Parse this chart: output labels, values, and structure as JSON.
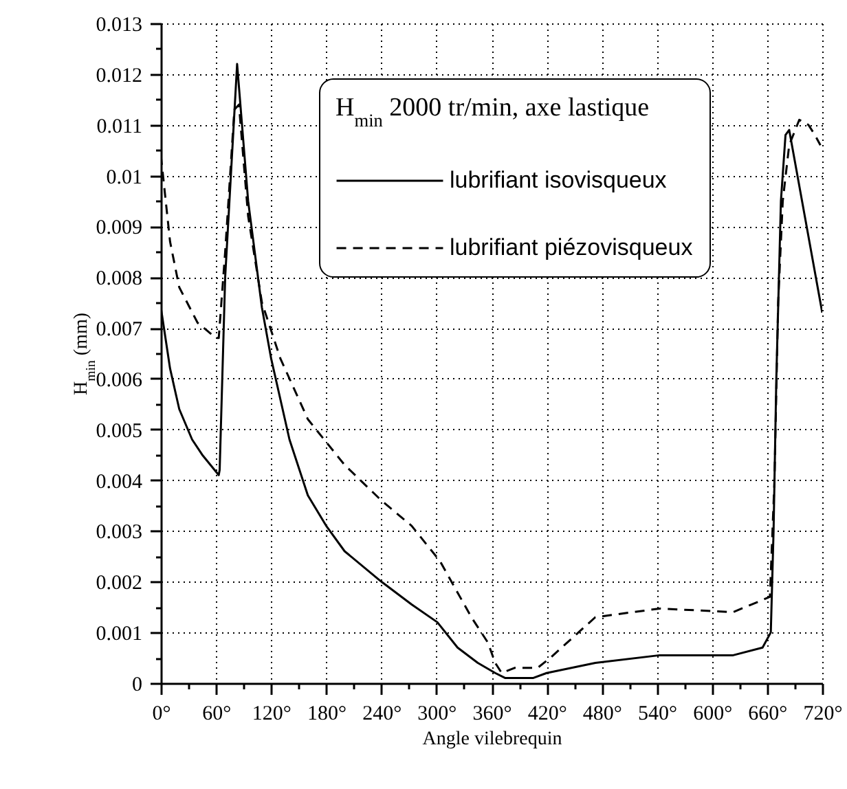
{
  "chart_data": {
    "type": "line",
    "xlabel": "Angle vilebrequin",
    "ylabel": "H$_{min}$ (mm)",
    "legend_title": "H$_{min}$  2000 tr/min, axe  lastique",
    "legend": "top",
    "grid": true,
    "xlim": [
      0,
      720
    ],
    "ylim": [
      0,
      0.013
    ],
    "xticks": [
      {
        "value": 0,
        "label": "0°"
      },
      {
        "value": 30,
        "label": null
      },
      {
        "value": 60,
        "label": "60°"
      },
      {
        "value": 90,
        "label": null
      },
      {
        "value": 120,
        "label": "120°"
      },
      {
        "value": 150,
        "label": null
      },
      {
        "value": 180,
        "label": "180°"
      },
      {
        "value": 210,
        "label": null
      },
      {
        "value": 240,
        "label": "240°"
      },
      {
        "value": 270,
        "label": null
      },
      {
        "value": 300,
        "label": "300°"
      },
      {
        "value": 330,
        "label": null
      },
      {
        "value": 360,
        "label": "360°"
      },
      {
        "value": 390,
        "label": null
      },
      {
        "value": 420,
        "label": "420°"
      },
      {
        "value": 450,
        "label": null
      },
      {
        "value": 480,
        "label": "480°"
      },
      {
        "value": 510,
        "label": null
      },
      {
        "value": 540,
        "label": "540°"
      },
      {
        "value": 570,
        "label": null
      },
      {
        "value": 600,
        "label": "600°"
      },
      {
        "value": 630,
        "label": null
      },
      {
        "value": 660,
        "label": "660°"
      },
      {
        "value": 690,
        "label": null
      },
      {
        "value": 720,
        "label": "720°"
      }
    ],
    "yticks": [
      0,
      {
        "value": 0.0005,
        "label": null
      },
      0.001,
      {
        "value": 0.0015,
        "label": null
      },
      0.002,
      {
        "value": 0.0025,
        "label": null
      },
      0.003,
      {
        "value": 0.0035,
        "label": null
      },
      0.004,
      {
        "value": 0.0045,
        "label": null
      },
      0.005,
      {
        "value": 0.0055,
        "label": null
      },
      0.006,
      {
        "value": 0.0065,
        "label": null
      },
      0.007,
      {
        "value": 0.0075,
        "label": null
      },
      0.008,
      {
        "value": 0.0085,
        "label": null
      },
      0.009,
      {
        "value": 0.0095,
        "label": null
      },
      0.01,
      {
        "value": 0.0105,
        "label": null
      },
      0.011,
      {
        "value": 0.0115,
        "label": null
      },
      0.012,
      {
        "value": 0.0125,
        "label": null
      },
      0.013
    ],
    "series": [
      {
        "name": "lubrifiant isovisqueux",
        "color": "#000000",
        "line_style": "solid",
        "x": [
          0,
          10,
          20,
          34,
          45,
          63,
          64,
          70,
          83,
          95,
          110,
          120,
          140,
          160,
          180,
          200,
          240,
          273,
          301,
          323,
          345,
          364,
          375,
          395,
          405,
          420,
          473,
          543,
          623,
          655,
          664,
          667,
          670,
          675,
          680,
          684,
          720
        ],
        "values": [
          0.0074,
          0.0062,
          0.0054,
          0.0048,
          0.0045,
          0.0041,
          0.0042,
          0.008,
          0.0122,
          0.0095,
          0.0074,
          0.0064,
          0.0048,
          0.0037,
          0.0031,
          0.0026,
          0.002,
          0.00155,
          0.0012,
          0.0007,
          0.0004,
          0.0002,
          0.0001,
          0.0001,
          0.0001,
          0.0002,
          0.0004,
          0.00055,
          0.00055,
          0.0007,
          0.001,
          0.003,
          0.006,
          0.0095,
          0.0108,
          0.0109,
          0.0073
        ]
      },
      {
        "name": "lubrifiant piézovisqueux",
        "color": "#000000",
        "line_style": "dashed",
        "x": [
          0,
          10,
          20,
          40,
          60,
          63,
          70,
          80,
          85,
          95,
          110,
          130,
          160,
          200,
          240,
          273,
          304,
          338,
          356,
          364,
          371,
          385,
          410,
          424,
          473,
          543,
          623,
          663,
          668,
          672,
          677,
          684,
          695,
          705,
          712,
          718
        ],
        "values": [
          0.0104,
          0.0087,
          0.0078,
          0.0071,
          0.0068,
          0.0068,
          0.0085,
          0.0113,
          0.0114,
          0.0092,
          0.0075,
          0.0064,
          0.0052,
          0.0043,
          0.0036,
          0.0031,
          0.0024,
          0.0013,
          0.0008,
          0.0004,
          0.0002,
          0.0003,
          0.0003,
          0.0005,
          0.0013,
          0.00147,
          0.0014,
          0.0017,
          0.004,
          0.0075,
          0.0095,
          0.0106,
          0.0111,
          0.011,
          0.0108,
          0.0106
        ]
      }
    ]
  }
}
